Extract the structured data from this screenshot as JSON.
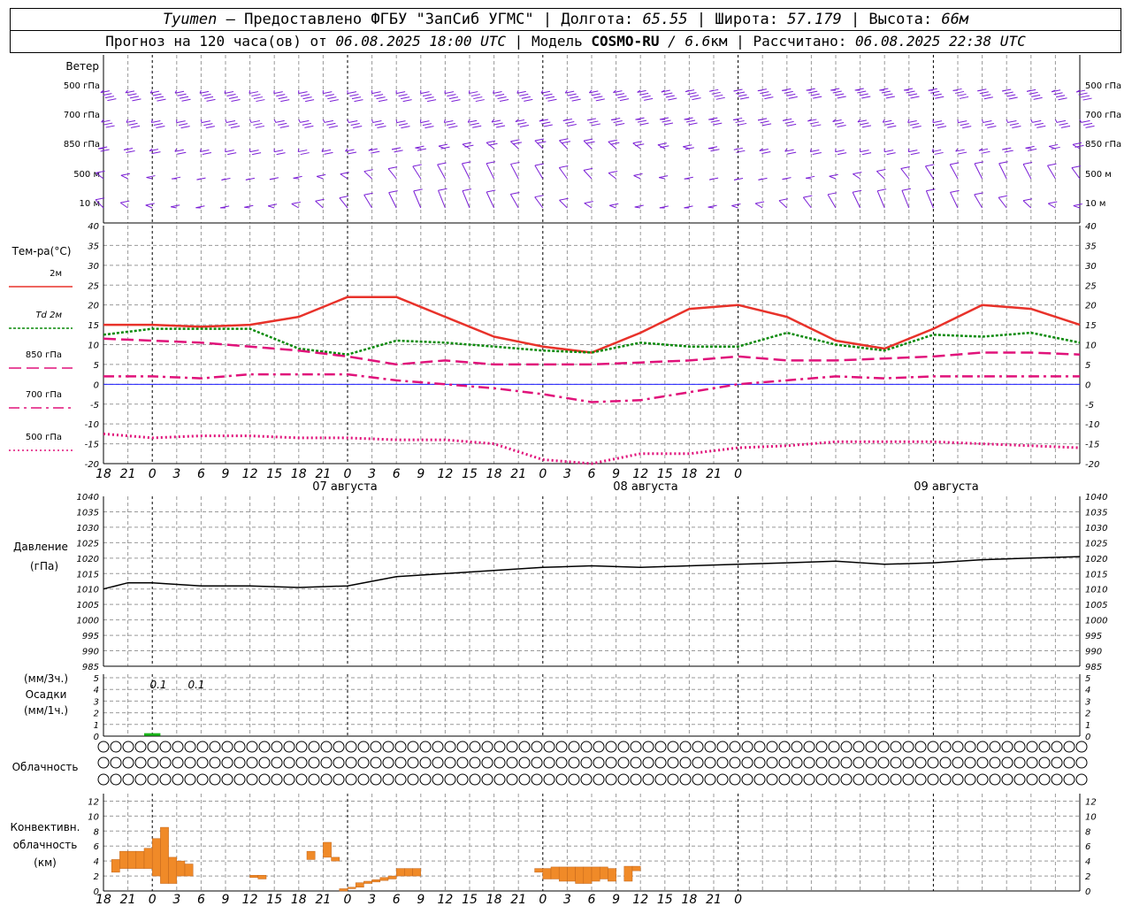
{
  "header": {
    "city": "Tyumen",
    "provider": "— Предоставлено ФГБУ \"ЗапСиб УГМС\"",
    "lon_label": "Долгота:",
    "lon": "65.55",
    "lat_label": "Широта:",
    "lat": "57.179",
    "alt_label": "Высота:",
    "alt": "66м",
    "forecast_label": "Прогноз на 120 часа(ов) от",
    "forecast_start": "06.08.2025 18:00 UTC",
    "model_label": "Модель",
    "model": "COSMO-RU",
    "resolution": "/ 6.6",
    "res_unit": "км",
    "calc_label": "Рассчитано:",
    "calc_time": "06.08.2025 22:38 UTC"
  },
  "wind_panel": {
    "title": "Ветер",
    "levels": [
      "500 гПа",
      "700 гПа",
      "850 гПа",
      "500 м",
      "10  м"
    ],
    "color": "#7b1fd6"
  },
  "temp_panel": {
    "title": "Тем-ра(°C)",
    "legend": [
      {
        "label": "2м",
        "color": "#e8322a"
      },
      {
        "label": "Td  2м",
        "color": "#0a8a0a"
      },
      {
        "label": "850 гПа",
        "color": "#e0127a"
      },
      {
        "label": "700 гПа",
        "color": "#e0127a"
      },
      {
        "label": "500 гПа",
        "color": "#e0127a"
      }
    ],
    "yticks": [
      "40",
      "35",
      "30",
      "25",
      "20",
      "15",
      "10",
      "5",
      "0",
      "-5",
      "-10",
      "-15",
      "-20"
    ]
  },
  "time_axis": {
    "hours": [
      "18",
      "21",
      "0",
      "3",
      "6",
      "9",
      "12",
      "15",
      "18",
      "21",
      "0",
      "3",
      "6",
      "9",
      "12",
      "15",
      "18",
      "21",
      "0",
      "3",
      "6",
      "9",
      "12",
      "15",
      "18",
      "21",
      "0"
    ],
    "dates": [
      "07 августа",
      "08 августа",
      "09 августа"
    ]
  },
  "pressure_panel": {
    "title": "Давление",
    "unit": "(гПа)",
    "yticks": [
      "1040",
      "1035",
      "1030",
      "1025",
      "1020",
      "1015",
      "1010",
      "1005",
      "1000",
      "995",
      "990",
      "985"
    ]
  },
  "precip_panel": {
    "unit3": "(мм/3ч.)",
    "title": "Осадки",
    "unit1": "(мм/1ч.)",
    "yticks": [
      "5",
      "4",
      "3",
      "2",
      "1",
      "0"
    ],
    "labels": [
      "0.1",
      "0.1"
    ]
  },
  "cloud_panel": {
    "title": "Облачность"
  },
  "conv_panel": {
    "title1": "Конвективн.",
    "title2": "облачность",
    "unit": "(км)",
    "yticks": [
      "12",
      "10",
      "8",
      "6",
      "4",
      "2",
      "0"
    ]
  },
  "chart_data": [
    {
      "type": "line",
      "name": "temperature",
      "x_hours": [
        0,
        6,
        12,
        18,
        24,
        30,
        36,
        42,
        48,
        54,
        60,
        66,
        72,
        78,
        84,
        90,
        96,
        102,
        108,
        114,
        120
      ],
      "ylim": [
        -20,
        40
      ],
      "series": [
        {
          "name": "2м",
          "values": [
            15,
            15,
            14.5,
            15,
            17,
            22,
            22,
            17,
            12,
            9.5,
            8,
            13,
            19,
            20,
            17,
            11,
            9,
            14,
            20,
            19,
            15
          ]
        },
        {
          "name": "Td 2м",
          "values": [
            12.5,
            14,
            14,
            14,
            9,
            7.5,
            11,
            10.5,
            9.5,
            8.5,
            8,
            10.5,
            9.5,
            9.5,
            13,
            10,
            8.5,
            12.5,
            12,
            13,
            10.5
          ]
        },
        {
          "name": "850 гПа",
          "values": [
            11.5,
            11,
            10.5,
            9.5,
            8.5,
            7,
            5,
            6,
            5,
            5,
            5,
            5.5,
            6,
            7,
            6,
            6,
            6.5,
            7,
            8,
            8,
            7.5
          ]
        },
        {
          "name": "700 гПа",
          "values": [
            2,
            2,
            1.5,
            2.5,
            2.5,
            2.5,
            1,
            0,
            -1,
            -2.5,
            -4.5,
            -4,
            -2,
            0,
            1,
            2,
            1.5,
            2,
            2,
            2,
            2
          ]
        },
        {
          "name": "500 гПа",
          "values": [
            -12.5,
            -13.5,
            -13,
            -13,
            -13.5,
            -13.5,
            -14,
            -14,
            -15,
            -19,
            -20,
            -17.5,
            -17.5,
            -16,
            -15.5,
            -14.5,
            -14.5,
            -14.5,
            -15,
            -15.5,
            -16
          ]
        }
      ]
    },
    {
      "type": "line",
      "name": "pressure",
      "x_hours": [
        0,
        3,
        6,
        12,
        18,
        24,
        30,
        36,
        42,
        48,
        54,
        60,
        66,
        72,
        78,
        84,
        90,
        96,
        102,
        108,
        114,
        120
      ],
      "ylim": [
        985,
        1040
      ],
      "values": [
        1010,
        1012,
        1012,
        1011,
        1011,
        1010.5,
        1011,
        1014,
        1015,
        1016,
        1017,
        1017.5,
        1017,
        1017.5,
        1018,
        1018.5,
        1019,
        1018,
        1018.5,
        1019.5,
        1020,
        1020.5
      ]
    },
    {
      "type": "bar",
      "name": "convective_cloud",
      "ylim": [
        0,
        13
      ],
      "bars": [
        {
          "h": 1,
          "lo": 2.5,
          "hi": 4.2
        },
        {
          "h": 2,
          "lo": 3,
          "hi": 5.3
        },
        {
          "h": 3,
          "lo": 3,
          "hi": 5.3
        },
        {
          "h": 4,
          "lo": 3,
          "hi": 5.3
        },
        {
          "h": 5,
          "lo": 3,
          "hi": 5.7
        },
        {
          "h": 6,
          "lo": 2,
          "hi": 7
        },
        {
          "h": 7,
          "lo": 1,
          "hi": 8.5
        },
        {
          "h": 8,
          "lo": 1,
          "hi": 4.5
        },
        {
          "h": 9,
          "lo": 2,
          "hi": 4
        },
        {
          "h": 10,
          "lo": 2,
          "hi": 3.6
        },
        {
          "h": 18,
          "lo": 1.8,
          "hi": 2.1
        },
        {
          "h": 19,
          "lo": 1.6,
          "hi": 2.1
        },
        {
          "h": 25,
          "lo": 4.2,
          "hi": 5.3
        },
        {
          "h": 27,
          "lo": 4.5,
          "hi": 6.5
        },
        {
          "h": 28,
          "lo": 4,
          "hi": 4.5
        },
        {
          "h": 29,
          "lo": 0,
          "hi": 0.3
        },
        {
          "h": 30,
          "lo": 0.3,
          "hi": 0.5
        },
        {
          "h": 31,
          "lo": 0.5,
          "hi": 1.1
        },
        {
          "h": 32,
          "lo": 1,
          "hi": 1.3
        },
        {
          "h": 33,
          "lo": 1.2,
          "hi": 1.5
        },
        {
          "h": 34,
          "lo": 1.4,
          "hi": 1.8
        },
        {
          "h": 35,
          "lo": 1.6,
          "hi": 2
        },
        {
          "h": 36,
          "lo": 2,
          "hi": 3
        },
        {
          "h": 37,
          "lo": 2,
          "hi": 3
        },
        {
          "h": 38,
          "lo": 2,
          "hi": 3
        },
        {
          "h": 53,
          "lo": 2.5,
          "hi": 3
        },
        {
          "h": 54,
          "lo": 1.6,
          "hi": 3
        },
        {
          "h": 55,
          "lo": 1.6,
          "hi": 3.2
        },
        {
          "h": 56,
          "lo": 1.3,
          "hi": 3.2
        },
        {
          "h": 57,
          "lo": 1.3,
          "hi": 3.2
        },
        {
          "h": 58,
          "lo": 1,
          "hi": 3.2
        },
        {
          "h": 59,
          "lo": 1,
          "hi": 3.2
        },
        {
          "h": 60,
          "lo": 1.3,
          "hi": 3.2
        },
        {
          "h": 61,
          "lo": 1.6,
          "hi": 3.2
        },
        {
          "h": 62,
          "lo": 1.3,
          "hi": 3
        },
        {
          "h": 64,
          "lo": 1.3,
          "hi": 3.3
        },
        {
          "h": 65,
          "lo": 2.7,
          "hi": 3.3
        }
      ]
    },
    {
      "type": "bar",
      "name": "precipitation",
      "ylim": [
        0,
        5
      ],
      "bars": [
        {
          "h": 6,
          "v": 0.1
        },
        {
          "h": 7,
          "v": 0.1
        }
      ]
    }
  ]
}
